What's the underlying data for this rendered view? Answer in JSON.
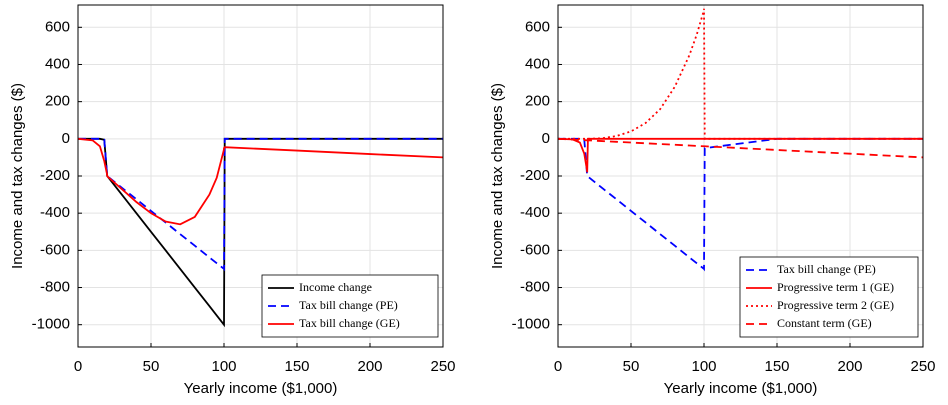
{
  "chart_data": [
    {
      "type": "line",
      "xlabel": "Yearly income ($1,000)",
      "ylabel": "Income and tax changes ($)",
      "x": [
        0,
        10,
        15,
        18,
        19.9,
        20,
        20.5,
        30,
        40,
        50,
        60,
        70,
        80,
        90,
        95,
        99.9,
        100,
        100.5,
        150,
        200,
        250
      ],
      "xlim": [
        0,
        250
      ],
      "xticks": [
        0,
        50,
        100,
        150,
        200,
        250
      ],
      "ylim": [
        -1120,
        720
      ],
      "yticks": [
        -1000,
        -800,
        -600,
        -400,
        -200,
        0,
        200,
        400,
        600
      ],
      "grid": true,
      "legend": "lower right",
      "series": [
        {
          "name": "Income change",
          "color": "#000000",
          "dash": "solid",
          "values": [
            0,
            0,
            0,
            -5,
            -190,
            -200,
            -205,
            -300,
            -400,
            -500,
            -600,
            -700,
            -800,
            -900,
            -950,
            -999,
            -1000,
            0,
            0,
            0,
            0
          ]
        },
        {
          "name": "Tax bill change (PE)",
          "color": "#0000ff",
          "dash": "dashed",
          "values": [
            0,
            0,
            0,
            -5,
            -190,
            -200,
            -203,
            -263,
            -325,
            -388,
            -450,
            -513,
            -575,
            -638,
            -669,
            -699,
            -700,
            0,
            0,
            0,
            0
          ]
        },
        {
          "name": "Tax bill change (GE)",
          "color": "#ff0000",
          "dash": "solid",
          "values": [
            0,
            -8,
            -40,
            -120,
            -190,
            -200,
            -205,
            -270,
            -340,
            -400,
            -445,
            -460,
            -420,
            -300,
            -210,
            -60,
            -50,
            -45,
            -63,
            -82,
            -100
          ]
        }
      ]
    },
    {
      "type": "line",
      "xlabel": "Yearly income ($1,000)",
      "ylabel": "Income and tax changes ($)",
      "x": [
        0,
        10,
        15,
        18,
        19.9,
        20,
        20.5,
        30,
        40,
        50,
        60,
        70,
        80,
        90,
        95,
        99.9,
        100,
        100.5,
        150,
        200,
        250
      ],
      "xlim": [
        0,
        250
      ],
      "xticks": [
        0,
        50,
        100,
        150,
        200,
        250
      ],
      "ylim": [
        -1120,
        720
      ],
      "yticks": [
        -1000,
        -800,
        -600,
        -400,
        -200,
        0,
        200,
        400,
        600
      ],
      "grid": true,
      "legend": "lower right",
      "series": [
        {
          "name": "Tax bill change (PE)",
          "color": "#0000ff",
          "dash": "dashed",
          "values": [
            0,
            0,
            0,
            -5,
            -190,
            -200,
            -203,
            -263,
            -325,
            -388,
            -450,
            -513,
            -575,
            -638,
            -669,
            -699,
            -700,
            -50,
            0,
            0,
            0
          ]
        },
        {
          "name": "Progressive term 1 (GE)",
          "color": "#ff0000",
          "dash": "solid",
          "values": [
            0,
            -3,
            -20,
            -80,
            -170,
            -180,
            0,
            0,
            0,
            0,
            0,
            0,
            0,
            0,
            0,
            0,
            0,
            0,
            0,
            0,
            0
          ]
        },
        {
          "name": "Progressive term 2 (GE)",
          "color": "#ff0000",
          "dash": "dotted",
          "values": [
            0,
            0,
            0,
            0,
            0,
            0,
            0,
            3,
            15,
            40,
            85,
            160,
            280,
            450,
            560,
            690,
            700,
            0,
            0,
            0,
            0
          ]
        },
        {
          "name": "Constant term (GE)",
          "color": "#ff0000",
          "dash": "dashed",
          "values": [
            0,
            -4,
            -6,
            -7,
            -8,
            -8,
            -8,
            -12,
            -16,
            -20,
            -24,
            -28,
            -32,
            -36,
            -38,
            -40,
            -40,
            -40,
            -60,
            -80,
            -100
          ]
        }
      ]
    }
  ]
}
